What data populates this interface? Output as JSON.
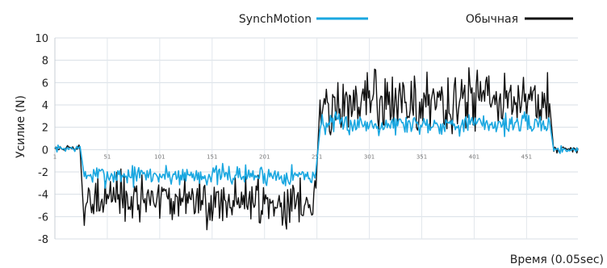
{
  "chart_data": {
    "type": "line",
    "title": "",
    "xlabel": "Время (0.05sec)",
    "ylabel": "Усилие (N)",
    "xlim": [
      1,
      500
    ],
    "ylim": [
      -8,
      10
    ],
    "yticks": [
      10,
      8,
      6,
      4,
      2,
      0,
      -2,
      -4,
      -6,
      -8
    ],
    "xticks": [
      1,
      51,
      101,
      151,
      201,
      251,
      301,
      351,
      401,
      451
    ],
    "grid": true,
    "legend": "top",
    "series": [
      {
        "name": "SynchMotion",
        "color": "#1aa7e0",
        "segments": [
          {
            "x": [
              1,
              25
            ],
            "mean": 0.1,
            "noise": 0.15
          },
          {
            "x": [
              29,
              250
            ],
            "mean": -2.3,
            "noise": 0.45
          },
          {
            "x": [
              254,
              473
            ],
            "mean": 2.3,
            "noise": 0.45
          },
          {
            "x": [
              477,
              500
            ],
            "mean": 0.0,
            "noise": 0.15
          }
        ]
      },
      {
        "name": "Обычная",
        "color": "#111111",
        "segments": [
          {
            "x": [
              1,
              25
            ],
            "mean": 0.1,
            "noise": 0.15
          },
          {
            "x": [
              29,
              250
            ],
            "mean": -4.6,
            "noise": 1.1
          },
          {
            "x": [
              254,
              473
            ],
            "mean": 4.2,
            "noise": 1.3
          },
          {
            "x": [
              477,
              500
            ],
            "mean": 0.0,
            "noise": 0.15
          }
        ]
      }
    ]
  }
}
